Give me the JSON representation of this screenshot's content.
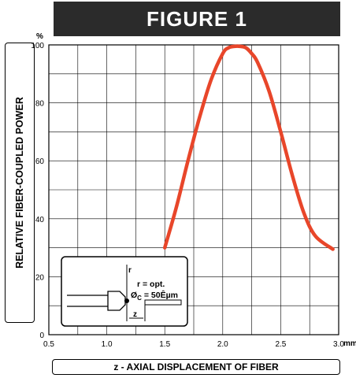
{
  "chart_data": {
    "type": "line",
    "title": "FIGURE 1",
    "xlabel": "z - AXIAL DISPLACEMENT OF FIBER",
    "ylabel": "RELATIVE FIBER-COUPLED POWER",
    "y_unit": "%",
    "x_unit": "mm",
    "xlim": [
      0.5,
      3.0
    ],
    "ylim": [
      0,
      100
    ],
    "x_ticks": [
      "0.5",
      "1.0",
      "1.5",
      "2.0",
      "2.5",
      "3.0"
    ],
    "y_ticks": [
      "0",
      "20",
      "40",
      "60",
      "80",
      "100"
    ],
    "grid": true,
    "series": [
      {
        "color": "#e8462a",
        "x": [
          1.5,
          1.6,
          1.7,
          1.8,
          1.9,
          2.0,
          2.05,
          2.1,
          2.15,
          2.2,
          2.25,
          2.3,
          2.4,
          2.5,
          2.6,
          2.7,
          2.8,
          2.95
        ],
        "y": [
          30,
          44,
          60,
          75,
          88,
          97,
          99,
          99.5,
          99.5,
          99,
          97,
          94,
          84,
          70,
          55,
          42,
          34,
          29.5
        ]
      }
    ],
    "inset": {
      "line1": "r = opt.",
      "line2_prefix": "Ø",
      "line2_sub": "C",
      "line2_suffix": " = 50Êµm",
      "label_r": "r",
      "label_z": "z"
    }
  }
}
